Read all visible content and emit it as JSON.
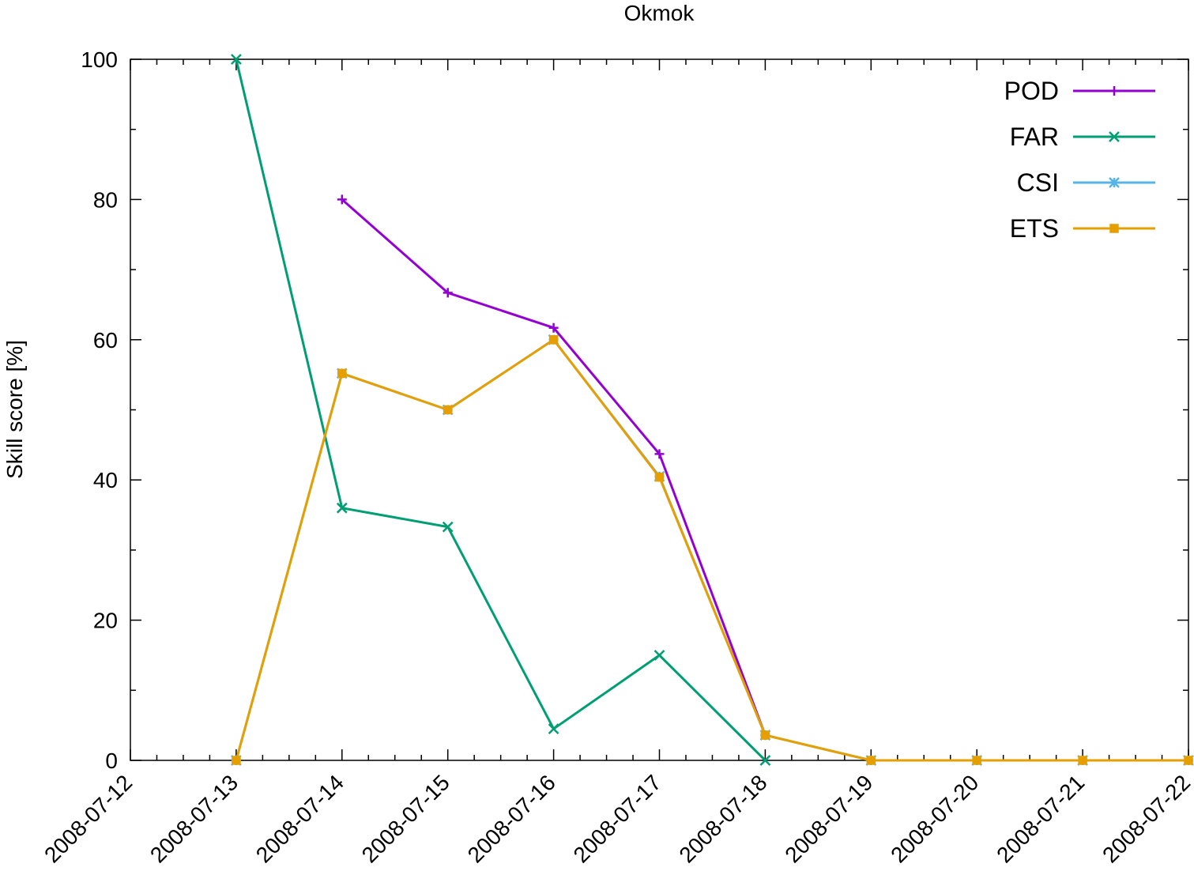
{
  "chart_data": {
    "type": "line",
    "title": "Okmok",
    "xlabel": "",
    "ylabel": "Skill score [%]",
    "x_ticks": [
      "2008-07-12",
      "2008-07-13",
      "2008-07-14",
      "2008-07-15",
      "2008-07-16",
      "2008-07-17",
      "2008-07-18",
      "2008-07-19",
      "2008-07-20",
      "2008-07-21",
      "2008-07-22"
    ],
    "xlim": [
      "2008-07-12",
      "2008-07-22"
    ],
    "y_ticks": [
      0,
      20,
      40,
      60,
      80,
      100
    ],
    "ylim": [
      0,
      100
    ],
    "grid": false,
    "legend_position": "top-right",
    "series": [
      {
        "name": "POD",
        "color": "#9400d3",
        "marker": "plus",
        "points": [
          {
            "x": "2008-07-14",
            "y": 80
          },
          {
            "x": "2008-07-15",
            "y": 66.7
          },
          {
            "x": "2008-07-16",
            "y": 61.7
          },
          {
            "x": "2008-07-17",
            "y": 43.7
          },
          {
            "x": "2008-07-18",
            "y": 3.6
          }
        ]
      },
      {
        "name": "FAR",
        "color": "#009e73",
        "marker": "cross",
        "points": [
          {
            "x": "2008-07-13",
            "y": 100
          },
          {
            "x": "2008-07-14",
            "y": 36
          },
          {
            "x": "2008-07-15",
            "y": 33.3
          },
          {
            "x": "2008-07-16",
            "y": 4.5
          },
          {
            "x": "2008-07-17",
            "y": 15
          },
          {
            "x": "2008-07-18",
            "y": 0
          }
        ]
      },
      {
        "name": "CSI",
        "color": "#56b4e9",
        "marker": "star",
        "points": [
          {
            "x": "2008-07-13",
            "y": 0
          },
          {
            "x": "2008-07-14",
            "y": 55.2
          },
          {
            "x": "2008-07-15",
            "y": 50
          },
          {
            "x": "2008-07-16",
            "y": 60
          },
          {
            "x": "2008-07-17",
            "y": 40.5
          },
          {
            "x": "2008-07-18",
            "y": 3.6
          },
          {
            "x": "2008-07-19",
            "y": 0
          },
          {
            "x": "2008-07-20",
            "y": 0
          },
          {
            "x": "2008-07-21",
            "y": 0
          },
          {
            "x": "2008-07-22",
            "y": 0
          }
        ]
      },
      {
        "name": "ETS",
        "color": "#e69f00",
        "marker": "square",
        "points": [
          {
            "x": "2008-07-13",
            "y": 0
          },
          {
            "x": "2008-07-14",
            "y": 55.2
          },
          {
            "x": "2008-07-15",
            "y": 50
          },
          {
            "x": "2008-07-16",
            "y": 60
          },
          {
            "x": "2008-07-17",
            "y": 40.4
          },
          {
            "x": "2008-07-18",
            "y": 3.6
          },
          {
            "x": "2008-07-19",
            "y": 0
          },
          {
            "x": "2008-07-20",
            "y": 0
          },
          {
            "x": "2008-07-21",
            "y": 0
          },
          {
            "x": "2008-07-22",
            "y": 0
          }
        ]
      }
    ]
  }
}
